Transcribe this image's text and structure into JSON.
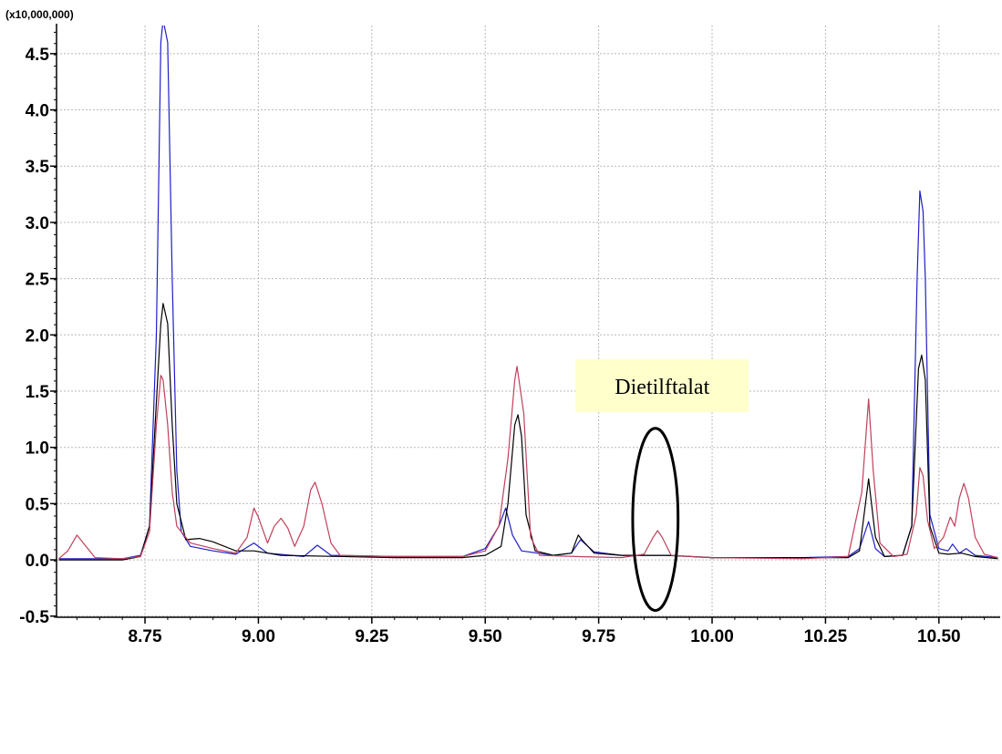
{
  "chart_data": {
    "type": "line",
    "title": "",
    "xlabel": "",
    "ylabel": "",
    "y_multiplier_label": "(x10,000,000)",
    "xlim": [
      8.555,
      10.635
    ],
    "ylim": [
      -0.51,
      4.75
    ],
    "x_ticks": [
      8.75,
      9.0,
      9.25,
      9.5,
      9.75,
      10.0,
      10.25,
      10.5
    ],
    "x_tick_labels": [
      "8.75",
      "9.00",
      "9.25",
      "9.50",
      "9.75",
      "10.00",
      "10.25",
      "10.50"
    ],
    "y_ticks": [
      -0.5,
      0.0,
      0.5,
      1.0,
      1.5,
      2.0,
      2.5,
      3.0,
      3.5,
      4.0,
      4.5
    ],
    "y_tick_labels": [
      "-0.5",
      "0.0",
      "0.5",
      "1.0",
      "1.5",
      "2.0",
      "2.5",
      "3.0",
      "3.5",
      "4.0",
      "4.5"
    ],
    "grid": true,
    "legend": "none",
    "series": [
      {
        "color": "#1f1fc8",
        "points": [
          [
            8.56,
            0.01
          ],
          [
            8.7,
            0.01
          ],
          [
            8.74,
            0.04
          ],
          [
            8.76,
            0.3
          ],
          [
            8.775,
            2.0
          ],
          [
            8.785,
            4.6
          ],
          [
            8.79,
            4.8
          ],
          [
            8.8,
            4.6
          ],
          [
            8.81,
            2.5
          ],
          [
            8.82,
            0.8
          ],
          [
            8.83,
            0.25
          ],
          [
            8.85,
            0.12
          ],
          [
            8.9,
            0.08
          ],
          [
            8.95,
            0.05
          ],
          [
            8.99,
            0.15
          ],
          [
            9.02,
            0.06
          ],
          [
            9.1,
            0.03
          ],
          [
            9.13,
            0.13
          ],
          [
            9.16,
            0.04
          ],
          [
            9.3,
            0.03
          ],
          [
            9.45,
            0.03
          ],
          [
            9.5,
            0.1
          ],
          [
            9.53,
            0.3
          ],
          [
            9.545,
            0.46
          ],
          [
            9.56,
            0.22
          ],
          [
            9.58,
            0.08
          ],
          [
            9.65,
            0.04
          ],
          [
            9.69,
            0.06
          ],
          [
            9.71,
            0.18
          ],
          [
            9.74,
            0.07
          ],
          [
            9.8,
            0.04
          ],
          [
            9.9,
            0.04
          ],
          [
            10.0,
            0.02
          ],
          [
            10.2,
            0.02
          ],
          [
            10.3,
            0.03
          ],
          [
            10.325,
            0.1
          ],
          [
            10.345,
            0.34
          ],
          [
            10.36,
            0.1
          ],
          [
            10.38,
            0.03
          ],
          [
            10.42,
            0.04
          ],
          [
            10.44,
            0.3
          ],
          [
            10.452,
            2.5
          ],
          [
            10.458,
            3.28
          ],
          [
            10.465,
            3.1
          ],
          [
            10.47,
            2.5
          ],
          [
            10.48,
            0.4
          ],
          [
            10.5,
            0.1
          ],
          [
            10.52,
            0.08
          ],
          [
            10.53,
            0.14
          ],
          [
            10.545,
            0.06
          ],
          [
            10.56,
            0.1
          ],
          [
            10.58,
            0.04
          ],
          [
            10.63,
            0.02
          ]
        ]
      },
      {
        "color": "#000000",
        "points": [
          [
            8.56,
            0.0
          ],
          [
            8.7,
            0.0
          ],
          [
            8.74,
            0.03
          ],
          [
            8.76,
            0.3
          ],
          [
            8.775,
            1.4
          ],
          [
            8.785,
            2.1
          ],
          [
            8.79,
            2.28
          ],
          [
            8.8,
            2.1
          ],
          [
            8.81,
            1.2
          ],
          [
            8.82,
            0.5
          ],
          [
            8.84,
            0.18
          ],
          [
            8.87,
            0.19
          ],
          [
            8.9,
            0.16
          ],
          [
            8.95,
            0.08
          ],
          [
            8.99,
            0.08
          ],
          [
            9.05,
            0.04
          ],
          [
            9.3,
            0.02
          ],
          [
            9.45,
            0.02
          ],
          [
            9.5,
            0.04
          ],
          [
            9.535,
            0.12
          ],
          [
            9.55,
            0.5
          ],
          [
            9.565,
            1.2
          ],
          [
            9.572,
            1.29
          ],
          [
            9.58,
            1.1
          ],
          [
            9.59,
            0.4
          ],
          [
            9.61,
            0.08
          ],
          [
            9.65,
            0.04
          ],
          [
            9.69,
            0.06
          ],
          [
            9.705,
            0.22
          ],
          [
            9.715,
            0.17
          ],
          [
            9.74,
            0.06
          ],
          [
            9.8,
            0.04
          ],
          [
            9.9,
            0.04
          ],
          [
            10.0,
            0.02
          ],
          [
            10.2,
            0.02
          ],
          [
            10.3,
            0.02
          ],
          [
            10.325,
            0.08
          ],
          [
            10.345,
            0.72
          ],
          [
            10.36,
            0.2
          ],
          [
            10.38,
            0.03
          ],
          [
            10.42,
            0.04
          ],
          [
            10.44,
            0.3
          ],
          [
            10.455,
            1.7
          ],
          [
            10.462,
            1.82
          ],
          [
            10.47,
            1.6
          ],
          [
            10.48,
            0.3
          ],
          [
            10.5,
            0.06
          ],
          [
            10.52,
            0.05
          ],
          [
            10.55,
            0.06
          ],
          [
            10.58,
            0.03
          ],
          [
            10.63,
            0.01
          ]
        ]
      },
      {
        "color": "#c0405a",
        "points": [
          [
            8.56,
            0.01
          ],
          [
            8.58,
            0.08
          ],
          [
            8.6,
            0.22
          ],
          [
            8.62,
            0.12
          ],
          [
            8.64,
            0.02
          ],
          [
            8.7,
            0.01
          ],
          [
            8.74,
            0.03
          ],
          [
            8.76,
            0.25
          ],
          [
            8.775,
            1.2
          ],
          [
            8.785,
            1.64
          ],
          [
            8.79,
            1.6
          ],
          [
            8.8,
            1.2
          ],
          [
            8.81,
            0.6
          ],
          [
            8.82,
            0.3
          ],
          [
            8.85,
            0.15
          ],
          [
            8.9,
            0.1
          ],
          [
            8.95,
            0.06
          ],
          [
            8.975,
            0.2
          ],
          [
            8.99,
            0.46
          ],
          [
            9.0,
            0.38
          ],
          [
            9.02,
            0.15
          ],
          [
            9.035,
            0.3
          ],
          [
            9.05,
            0.37
          ],
          [
            9.065,
            0.28
          ],
          [
            9.08,
            0.12
          ],
          [
            9.1,
            0.3
          ],
          [
            9.115,
            0.62
          ],
          [
            9.125,
            0.69
          ],
          [
            9.14,
            0.5
          ],
          [
            9.16,
            0.15
          ],
          [
            9.18,
            0.04
          ],
          [
            9.3,
            0.03
          ],
          [
            9.45,
            0.03
          ],
          [
            9.5,
            0.08
          ],
          [
            9.53,
            0.3
          ],
          [
            9.55,
            0.9
          ],
          [
            9.565,
            1.6
          ],
          [
            9.57,
            1.72
          ],
          [
            9.585,
            1.3
          ],
          [
            9.6,
            0.2
          ],
          [
            9.62,
            0.04
          ],
          [
            9.7,
            0.03
          ],
          [
            9.8,
            0.02
          ],
          [
            9.85,
            0.05
          ],
          [
            9.87,
            0.2
          ],
          [
            9.88,
            0.26
          ],
          [
            9.89,
            0.2
          ],
          [
            9.91,
            0.04
          ],
          [
            10.0,
            0.02
          ],
          [
            10.2,
            0.01
          ],
          [
            10.3,
            0.03
          ],
          [
            10.33,
            0.6
          ],
          [
            10.345,
            1.43
          ],
          [
            10.355,
            0.8
          ],
          [
            10.37,
            0.15
          ],
          [
            10.4,
            0.03
          ],
          [
            10.43,
            0.05
          ],
          [
            10.45,
            0.4
          ],
          [
            10.458,
            0.82
          ],
          [
            10.465,
            0.75
          ],
          [
            10.475,
            0.35
          ],
          [
            10.49,
            0.1
          ],
          [
            10.51,
            0.2
          ],
          [
            10.525,
            0.38
          ],
          [
            10.535,
            0.3
          ],
          [
            10.545,
            0.55
          ],
          [
            10.555,
            0.68
          ],
          [
            10.565,
            0.55
          ],
          [
            10.58,
            0.2
          ],
          [
            10.6,
            0.05
          ],
          [
            10.63,
            0.02
          ]
        ]
      }
    ],
    "annotations": [
      {
        "text": "Dietilftalat",
        "x": 9.89,
        "y": 1.54,
        "highlight": "#ffffcc"
      }
    ],
    "highlight_ellipse": {
      "cx": 9.875,
      "cy": 0.36,
      "rx": 0.05,
      "ry": 0.81
    }
  }
}
